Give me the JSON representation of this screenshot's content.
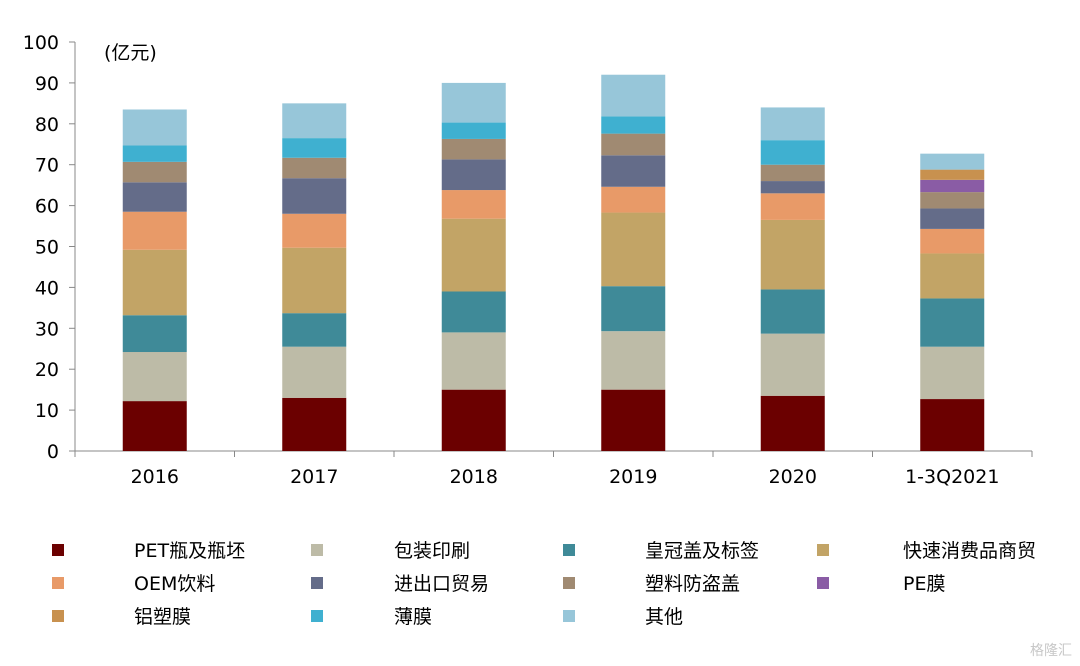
{
  "chart_data": {
    "type": "bar",
    "stacked": true,
    "unit_label": "(亿元)",
    "categories": [
      "2016",
      "2017",
      "2018",
      "2019",
      "2020",
      "1-3Q2021"
    ],
    "ylim": [
      0,
      100
    ],
    "yticks": [
      0,
      10,
      20,
      30,
      40,
      50,
      60,
      70,
      80,
      90,
      100
    ],
    "grid": false,
    "legend_position": "bottom",
    "series": [
      {
        "name": "PET瓶及瓶坯",
        "color": "#6b0000",
        "values": [
          12.2,
          13.0,
          15.0,
          15.0,
          13.5,
          12.7
        ]
      },
      {
        "name": "包装印刷",
        "color": "#bdbba7",
        "values": [
          12.0,
          12.5,
          14.0,
          14.3,
          15.2,
          12.8
        ]
      },
      {
        "name": "皇冠盖及标签",
        "color": "#3f8a98",
        "values": [
          9.0,
          8.2,
          10.0,
          11.0,
          10.8,
          11.8
        ]
      },
      {
        "name": "快速消费品商贸",
        "color": "#c2a466",
        "values": [
          16.0,
          16.0,
          17.8,
          18.0,
          17.0,
          11.0
        ]
      },
      {
        "name": "OEM饮料",
        "color": "#e89a68",
        "values": [
          9.3,
          8.3,
          7.0,
          6.3,
          6.5,
          6.0
        ]
      },
      {
        "name": "进出口贸易",
        "color": "#646c89",
        "values": [
          7.2,
          8.7,
          7.5,
          7.7,
          3.0,
          5.0
        ]
      },
      {
        "name": "塑料防盗盖",
        "color": "#a08a72",
        "values": [
          5.0,
          5.0,
          5.0,
          5.3,
          4.0,
          4.0
        ]
      },
      {
        "name": "PE膜",
        "color": "#8a5ca5",
        "values": [
          0,
          0,
          0,
          0,
          0,
          3.0
        ]
      },
      {
        "name": "铝塑膜",
        "color": "#c8914f",
        "values": [
          0,
          0,
          0,
          0,
          0,
          2.5
        ]
      },
      {
        "name": "薄膜",
        "color": "#3fb0d0",
        "values": [
          4.0,
          4.8,
          4.0,
          4.2,
          6.0,
          0
        ]
      },
      {
        "name": "其他",
        "color": "#97c6d9",
        "values": [
          8.8,
          8.5,
          9.7,
          10.2,
          8.0,
          3.9
        ]
      }
    ]
  },
  "watermark": "格隆汇"
}
